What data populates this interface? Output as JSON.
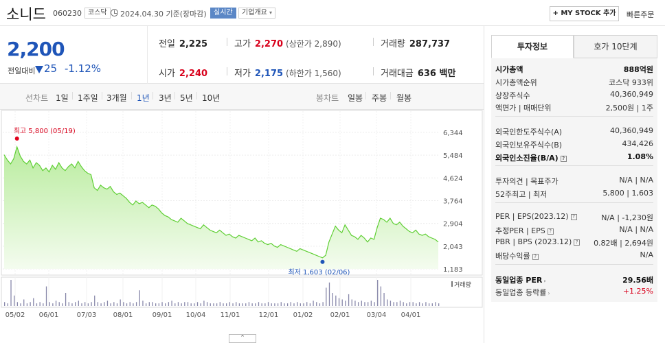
{
  "header": {
    "name": "소니드",
    "code": "060230",
    "market": "코스닥",
    "date": "2024.04.30 기준(장마감)",
    "realtime": "실시간",
    "company": "기업개요",
    "my_stock": "+ MY STOCK 추가",
    "quick_order": "빠른주문"
  },
  "summary": {
    "price": "2,200",
    "change_label": "전일대비",
    "change": "25",
    "change_pct": "-1.12%",
    "prev_label": "전일",
    "prev": "2,225",
    "open_label": "시가",
    "open": "2,240",
    "high_label": "고가",
    "high": "2,270",
    "upper_limit": "(상한가 2,890)",
    "low_label": "저가",
    "low": "2,175",
    "lower_limit": "(하한가 1,560)",
    "volume_label": "거래량",
    "volume": "287,737",
    "amount_label": "거래대금",
    "amount": "636 백만"
  },
  "tabs": {
    "line_label": "선차트",
    "ranges": [
      "1일",
      "1주일",
      "3개월",
      "1년",
      "3년",
      "5년",
      "10년"
    ],
    "selected_range": "1년",
    "candle_label": "봉차트",
    "candles": [
      "일봉",
      "주봉",
      "월봉"
    ]
  },
  "chart_data": {
    "type": "area",
    "x_ticks": [
      "05/02",
      "06/01",
      "07/03",
      "08/01",
      "09/01",
      "10/04",
      "11/01",
      "12/01",
      "01/02",
      "02/01",
      "03/04",
      "04/01"
    ],
    "y_ticks": [
      "6,344",
      "5,484",
      "4,624",
      "3,764",
      "2,904",
      "2,043",
      "1,183"
    ],
    "ylim": [
      1183,
      6344
    ],
    "max_label": "최고 5,800 (05/19)",
    "min_label": "최저 1,603 (02/06)",
    "volume_label": "거래량",
    "price": [
      5500,
      5300,
      5150,
      5350,
      5800,
      5450,
      5250,
      5150,
      5300,
      5000,
      5200,
      5100,
      4900,
      5000,
      4850,
      5100,
      4950,
      5200,
      5000,
      4900,
      5050,
      5150,
      5000,
      5250,
      5050,
      4900,
      4800,
      4750,
      4250,
      4150,
      4350,
      4250,
      4200,
      4300,
      4100,
      4000,
      4050,
      3950,
      3850,
      3700,
      3600,
      3750,
      3650,
      3700,
      3600,
      3500,
      3600,
      3550,
      3450,
      3300,
      3200,
      3150,
      3050,
      3000,
      2950,
      3100,
      3000,
      2900,
      2850,
      2800,
      2750,
      2700,
      2850,
      2750,
      2650,
      2600,
      2550,
      2650,
      2550,
      2450,
      2500,
      2400,
      2350,
      2450,
      2400,
      2350,
      2300,
      2250,
      2350,
      2200,
      2250,
      2150,
      2100,
      2150,
      2050,
      2000,
      2100,
      2050,
      2000,
      1950,
      1900,
      1850,
      1950,
      1900,
      1850,
      1800,
      1750,
      1700,
      1650,
      1603,
      1700,
      2200,
      2500,
      2800,
      2650,
      2550,
      2850,
      2650,
      2450,
      2400,
      2300,
      2450,
      2350,
      2200,
      2350,
      2300,
      2750,
      3100,
      3050,
      2950,
      3100,
      2900,
      2850,
      2950,
      2800,
      2700,
      2600,
      2550,
      2650,
      2500,
      2450,
      2500,
      2400,
      2350,
      2300,
      2200
    ],
    "volume": [
      3,
      2,
      20,
      8,
      3,
      2,
      5,
      2,
      3,
      6,
      2,
      3,
      2,
      15,
      3,
      2,
      4,
      3,
      2,
      10,
      3,
      2,
      3,
      4,
      2,
      3,
      2,
      3,
      8,
      3,
      2,
      3,
      4,
      2,
      3,
      2,
      5,
      3,
      2,
      3,
      2,
      3,
      12,
      4,
      2,
      3,
      3,
      2,
      2,
      3,
      2,
      3,
      4,
      2,
      3,
      2,
      3,
      3,
      2,
      2,
      3,
      2,
      4,
      3,
      2,
      2,
      2,
      3,
      2,
      2,
      3,
      2,
      3,
      2,
      2,
      2,
      3,
      2,
      2,
      3,
      2,
      2,
      3,
      2,
      2,
      2,
      3,
      2,
      2,
      3,
      2,
      3,
      2,
      2,
      3,
      2,
      4,
      3,
      2,
      3,
      14,
      18,
      10,
      8,
      6,
      5,
      4,
      9,
      5,
      4,
      3,
      4,
      3,
      3,
      4,
      3,
      20,
      15,
      10,
      5,
      4,
      3,
      3,
      4,
      3,
      2,
      3,
      3,
      2,
      3,
      2,
      3,
      2,
      2,
      3,
      2
    ]
  },
  "invest": {
    "tab_active": "투자정보",
    "tab_other": "호가 10단계",
    "rows": [
      {
        "k": "시가총액",
        "v": "888억원"
      },
      {
        "k": "시가총액순위",
        "v": "코스닥 933위"
      },
      {
        "k": "상장주식수",
        "v": "40,360,949"
      },
      {
        "k": "액면가 | 매매단위",
        "v": "2,500원 | 1주"
      },
      {
        "k": "외국인한도주식수(A)",
        "v": "40,360,949"
      },
      {
        "k": "외국인보유주식수(B)",
        "v": "434,426"
      },
      {
        "k": "외국인소진율(B/A)",
        "v": "1.08%"
      },
      {
        "k": "투자의견 | 목표주가",
        "v": "N/A | N/A"
      },
      {
        "k": "52주최고 | 최저",
        "v": "5,800 | 1,603"
      },
      {
        "k": "PER | EPS(2023.12)",
        "v": "N/A | -1,230원"
      },
      {
        "k": "추정PER | EPS",
        "v": "N/A | N/A"
      },
      {
        "k": "PBR | BPS (2023.12)",
        "v": "0.82배 | 2,694원"
      },
      {
        "k": "배당수익률",
        "v": "N/A"
      },
      {
        "k": "동일업종 PER",
        "v": "29.56배"
      },
      {
        "k": "동일업종 등락률",
        "v": "+1.25%"
      }
    ]
  }
}
